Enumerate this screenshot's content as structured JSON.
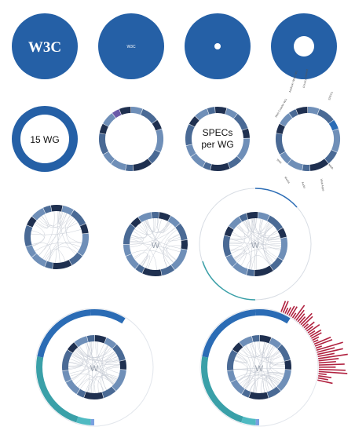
{
  "colors": {
    "w3c_blue": "#2560a6",
    "ring_light": "#6f8fb8",
    "ring_mid": "#4a6a95",
    "ring_dark": "#1f3050",
    "ring_purple": "#6a5aa8",
    "outer_blue": "#2b6cb5",
    "outer_teal": "#3aa0a8",
    "outer_cyan": "#4fbac2",
    "bars_red": "#b0213f",
    "chord": "#c8cdd6",
    "faint": "#b8c0cc"
  },
  "frames": {
    "frame1": {
      "logo_text": "W3C"
    },
    "frame2": {
      "logo_text": "W3C"
    },
    "frame5": {
      "center_text": "15 WG"
    },
    "frame7": {
      "center_text_line1": "SPECs",
      "center_text_line2": "per WG"
    },
    "frame8": {
      "radial_labels": [
        "Addison Wiley WG",
        "Web Crawler WG",
        "Privacy Interest",
        "SPECs",
        "Web",
        "Media",
        "Audio",
        "Web Apps",
        "Math"
      ]
    },
    "frame10": {
      "center_text": "W"
    },
    "frame11": {
      "center_text": "W"
    },
    "frame12": {
      "center_text": "W"
    },
    "frame13": {
      "center_text": "W"
    }
  }
}
